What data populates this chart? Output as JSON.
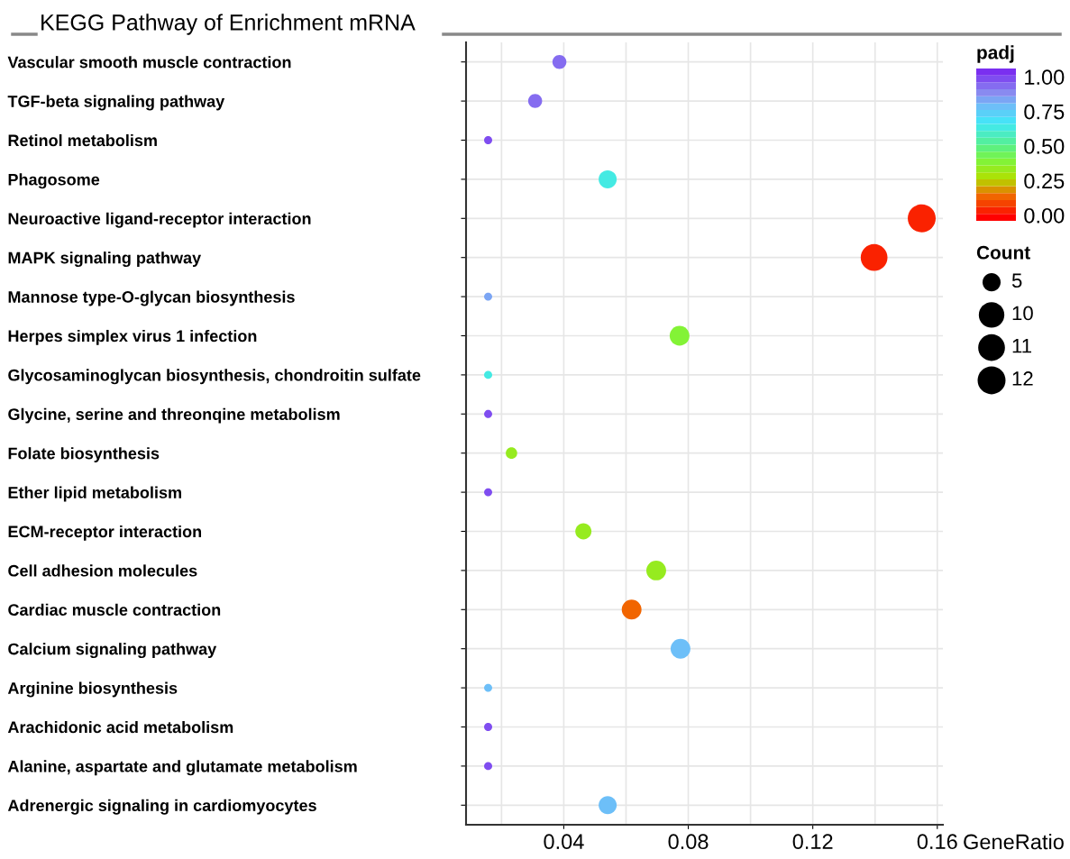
{
  "chart_data": {
    "type": "bubble",
    "title": "KEGG Pathway of Enrichment mRNA",
    "xlabel": "GeneRatio",
    "legend_title": "Count",
    "clabel": "padj",
    "categories": [
      "Vascular smooth muscle contraction",
      "TGF-beta signaling pathway",
      "Retinol metabolism",
      "Phagosome",
      "Neuroactive ligand-receptor interaction",
      "MAPK signaling pathway",
      "Mannose type-O-glycan biosynthesis",
      "Herpes simplex virus 1 infection",
      "Glycosaminoglycan biosynthesis, chondroitin sulfate",
      "Glycine, serine and threonqine metabolism",
      "Folate biosynthesis",
      "Ether lipid metabolism",
      "ECM-receptor interaction",
      "Cell adhesion molecules",
      "Cardiac muscle contraction",
      "Calcium signaling pathway",
      "Arginine biosynthesis",
      "Arachidonic acid metabolism",
      "Alanine, aspartate and glutamate metabolism",
      "Adrenergic signaling in cardiomyocytes"
    ],
    "values": [
      0.0386,
      0.0308,
      0.0157,
      0.0541,
      0.155,
      0.1397,
      0.0157,
      0.0772,
      0.0157,
      0.0157,
      0.0232,
      0.0157,
      0.0463,
      0.0697,
      0.0618,
      0.0775,
      0.0157,
      0.0157,
      0.0157,
      0.0541
    ],
    "sizes": [
      3,
      3,
      1,
      5,
      12,
      11,
      1,
      6,
      1,
      1,
      2,
      1,
      4,
      6,
      6,
      6,
      1,
      1,
      1,
      5
    ],
    "cvalues": [
      0.95,
      0.95,
      0.97,
      0.65,
      0.05,
      0.05,
      0.85,
      0.4,
      0.65,
      0.97,
      0.34,
      0.97,
      0.36,
      0.36,
      0.12,
      0.78,
      0.78,
      0.97,
      0.97,
      0.78
    ],
    "size_legend": [
      5,
      10,
      11,
      12
    ],
    "xlim": [
      0.0086,
      0.1618
    ],
    "xticks": [
      0.04,
      0.08,
      0.12,
      0.16
    ],
    "clim": [
      -0.04,
      1.06
    ],
    "cticks": [
      {
        "value": 0,
        "label": "0.00"
      },
      {
        "value": 0.25,
        "label": "0.25"
      },
      {
        "value": 0.5,
        "label": "0.50"
      },
      {
        "value": 0.75,
        "label": "0.75"
      },
      {
        "value": 1,
        "label": "1.00"
      }
    ],
    "orientation": "horizontal",
    "grid": true
  }
}
